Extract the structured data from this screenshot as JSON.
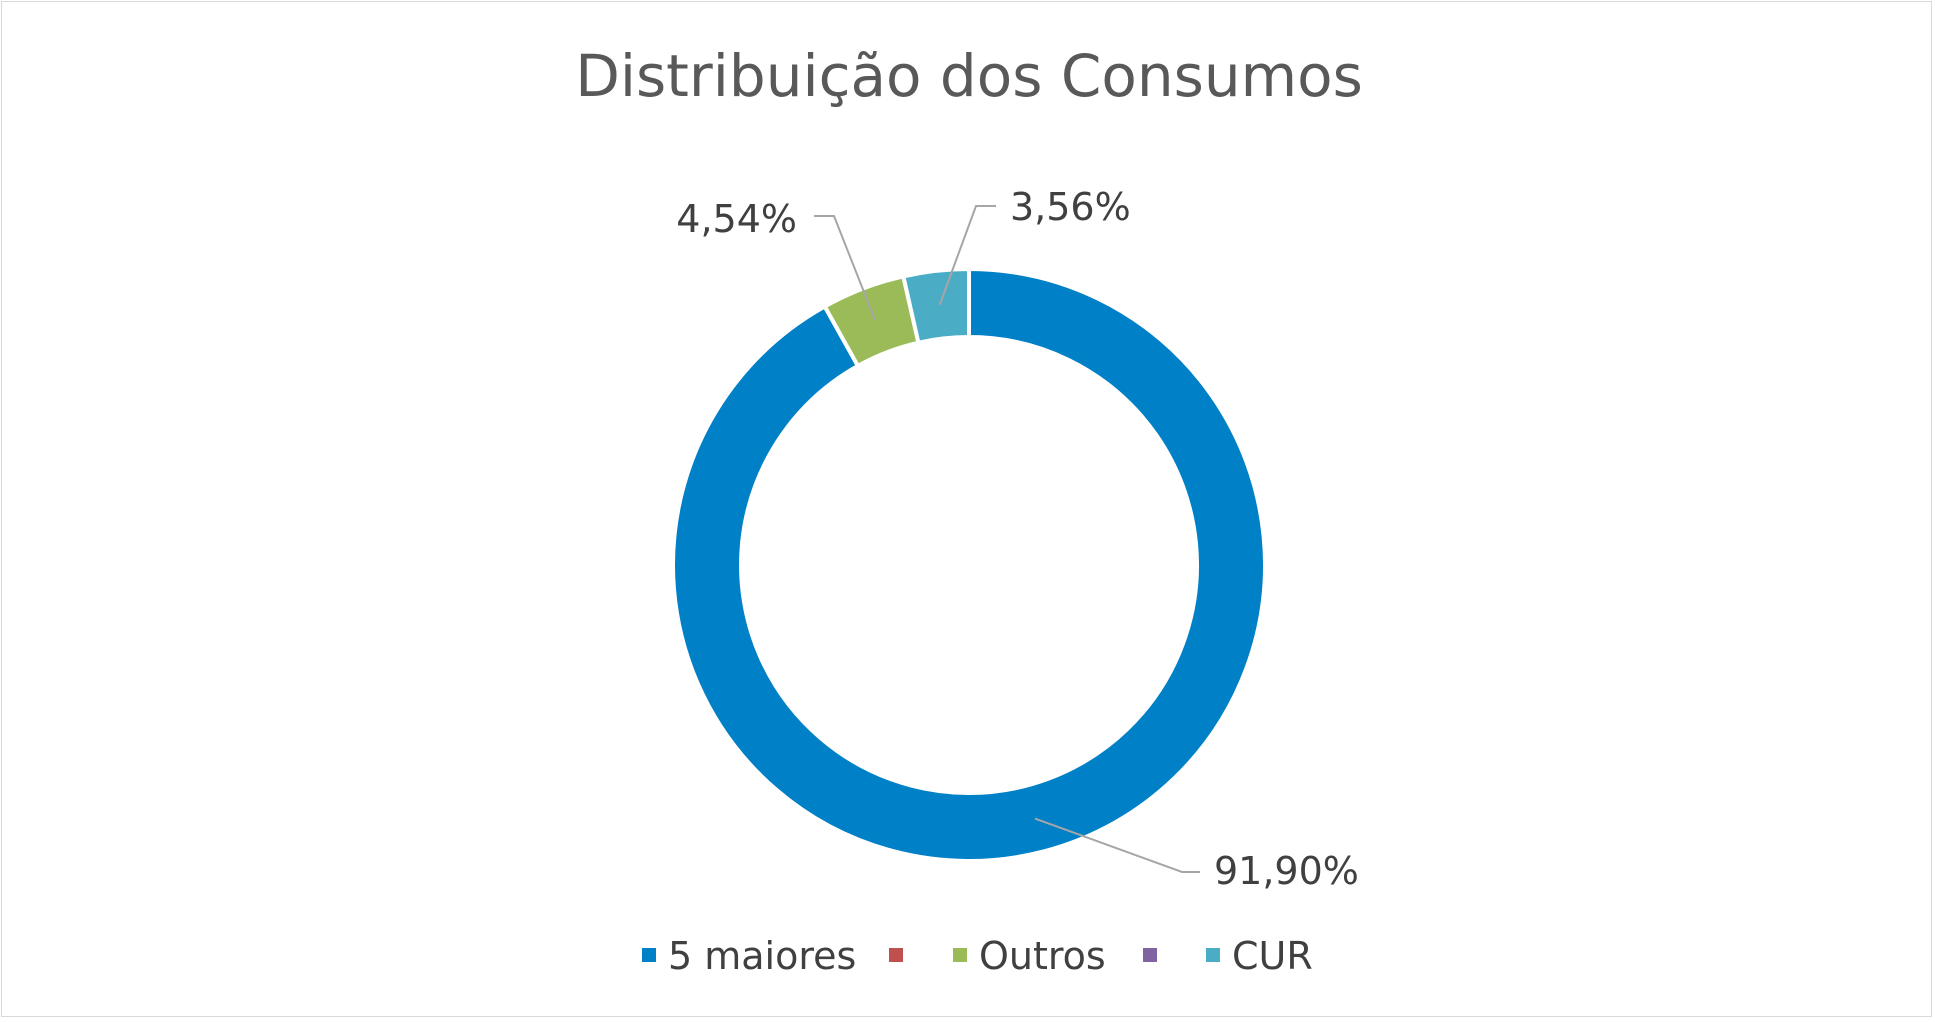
{
  "chart_data": {
    "type": "donut",
    "title": "Distribuição dos Consumos",
    "categories": [
      "5 maiores",
      "",
      "Outros",
      "",
      "CUR"
    ],
    "values": [
      91.9,
      0,
      4.54,
      0,
      3.56
    ],
    "data_labels": [
      "91,90%",
      "",
      "4,54%",
      "",
      "3,56%"
    ],
    "colors": [
      "#0080C6",
      "#C0504D",
      "#9BBB59",
      "#8064A2",
      "#4BACC6"
    ],
    "legend_position": "bottom",
    "grid": false
  }
}
